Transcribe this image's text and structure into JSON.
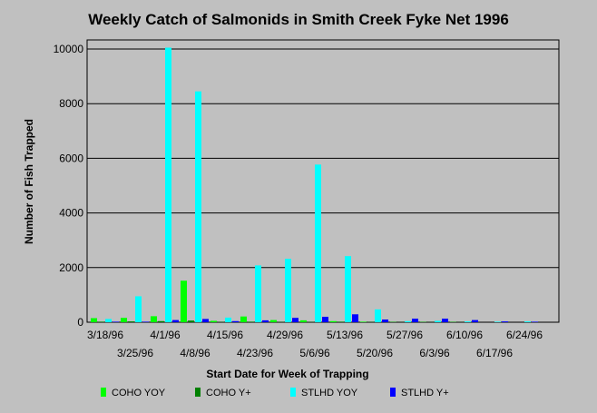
{
  "chart_data": {
    "type": "bar",
    "title": "Weekly Catch of Salmonids in Smith Creek Fyke Net 1996",
    "xlabel": "Start Date for Week of Trapping",
    "ylabel": "Number of Fish Trapped",
    "ylim": [
      0,
      10000
    ],
    "yticks": [
      0,
      2000,
      4000,
      6000,
      8000,
      10000
    ],
    "grid": true,
    "legend_position": "bottom",
    "categories": [
      "3/18/96",
      "3/25/96",
      "4/1/96",
      "4/8/96",
      "4/15/96",
      "4/23/96",
      "4/29/96",
      "5/6/96",
      "5/13/96",
      "5/20/96",
      "5/27/96",
      "6/3/96",
      "6/10/96",
      "6/17/96",
      "6/24/96"
    ],
    "series": [
      {
        "name": "COHO YOY",
        "color": "#00ff00",
        "values": [
          150,
          160,
          220,
          1520,
          50,
          210,
          80,
          70,
          40,
          20,
          10,
          10,
          10,
          0,
          0
        ]
      },
      {
        "name": "COHO Y+",
        "color": "#008000",
        "values": [
          20,
          30,
          40,
          60,
          10,
          20,
          10,
          10,
          20,
          10,
          5,
          5,
          5,
          0,
          0
        ]
      },
      {
        "name": "STLHD YOY",
        "color": "#00ffff",
        "values": [
          120,
          950,
          10050,
          8450,
          170,
          2080,
          2320,
          5770,
          2420,
          470,
          40,
          50,
          30,
          20,
          30
        ]
      },
      {
        "name": "STLHD Y+",
        "color": "#0000ff",
        "values": [
          20,
          20,
          80,
          120,
          40,
          70,
          160,
          200,
          290,
          100,
          130,
          130,
          80,
          30,
          20
        ]
      }
    ]
  }
}
